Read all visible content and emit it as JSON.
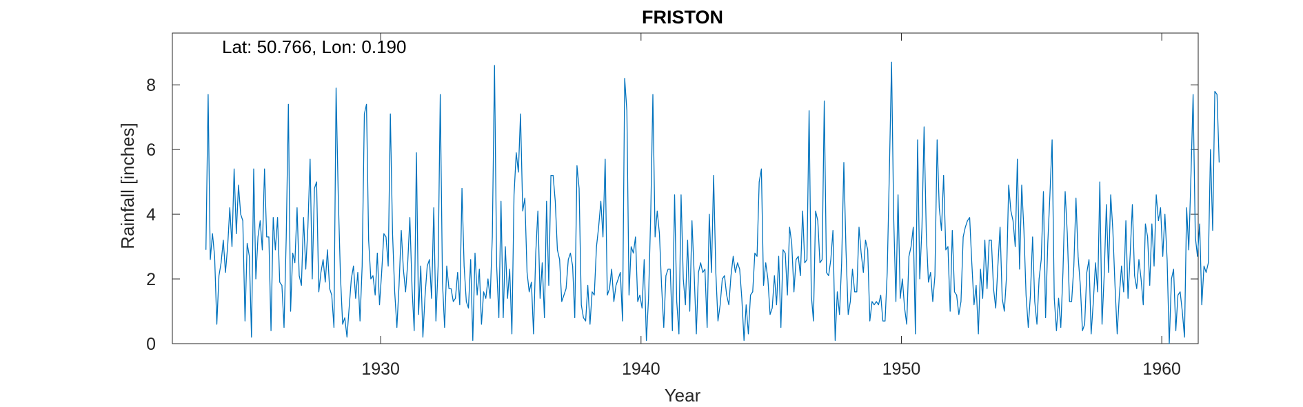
{
  "chart_data": {
    "type": "line",
    "title": "FRISTON",
    "annotation": "Lat: 50.766, Lon: 0.190",
    "xlabel": "Year",
    "ylabel": "Rainfall [inches]",
    "xlim": [
      1922.0,
      1961.4
    ],
    "ylim": [
      0,
      9.6
    ],
    "xticks": [
      1930,
      1940,
      1950,
      1960
    ],
    "yticks": [
      0,
      2,
      4,
      6,
      8
    ],
    "grid": false,
    "series_color": "#0072BD",
    "series": [
      {
        "x_start": 1923.29,
        "x_step": 0.08333,
        "values": [
          2.9,
          7.7,
          2.6,
          3.4,
          2.7,
          0.6,
          2.1,
          2.5,
          3.2,
          2.2,
          3.0,
          4.2,
          3.0,
          5.4,
          3.4,
          4.9,
          4.0,
          3.8,
          0.7,
          3.1,
          2.7,
          0.2,
          5.4,
          2.0,
          3.3,
          3.8,
          2.9,
          5.4,
          3.3,
          3.3,
          0.4,
          3.9,
          2.9,
          3.9,
          1.9,
          1.8,
          0.5,
          3.3,
          7.4,
          1.0,
          2.8,
          2.5,
          4.2,
          2.1,
          1.8,
          3.9,
          2.3,
          3.6,
          5.7,
          2.0,
          4.8,
          5.0,
          1.6,
          2.2,
          2.6,
          1.9,
          2.9,
          1.7,
          1.5,
          0.5,
          7.9,
          4.5,
          2.1,
          0.6,
          0.8,
          0.2,
          1.1,
          2.0,
          2.4,
          1.4,
          2.2,
          0.7,
          2.4,
          7.1,
          7.4,
          3.2,
          2.0,
          2.1,
          1.5,
          2.8,
          1.2,
          2.2,
          3.4,
          3.3,
          2.4,
          7.1,
          3.4,
          1.6,
          0.5,
          1.8,
          3.5,
          2.3,
          1.6,
          2.5,
          3.9,
          1.7,
          0.4,
          5.9,
          0.9,
          2.4,
          0.2,
          1.5,
          2.4,
          2.6,
          1.4,
          4.2,
          0.7,
          2.4,
          7.7,
          1.9,
          0.5,
          2.4,
          1.7,
          1.7,
          1.3,
          1.4,
          2.2,
          1.2,
          4.8,
          2.4,
          1.3,
          1.1,
          2.6,
          0.1,
          2.8,
          1.5,
          2.3,
          0.6,
          1.6,
          1.4,
          2.0,
          1.4,
          3.3,
          8.6,
          2.4,
          0.8,
          4.4,
          0.8,
          3.0,
          1.4,
          2.3,
          0.3,
          4.6,
          5.9,
          5.3,
          7.1,
          4.1,
          4.5,
          2.2,
          1.6,
          1.9,
          0.3,
          2.8,
          4.1,
          1.4,
          2.5,
          0.8,
          4.4,
          1.8,
          5.2,
          5.2,
          4.4,
          2.9,
          2.6,
          1.3,
          1.5,
          1.7,
          2.6,
          2.8,
          2.4,
          0.8,
          5.5,
          4.8,
          1.2,
          0.8,
          0.7,
          1.8,
          0.6,
          1.6,
          1.5,
          3.0,
          3.6,
          4.4,
          3.3,
          5.7,
          1.5,
          1.7,
          2.3,
          1.3,
          1.8,
          2.0,
          2.2,
          0.7,
          8.2,
          7.2,
          1.5,
          3.0,
          2.8,
          3.3,
          1.3,
          1.5,
          1.1,
          2.6,
          0.1,
          1.4,
          4.0,
          7.7,
          3.3,
          4.1,
          3.4,
          1.8,
          0.5,
          2.1,
          2.3,
          2.3,
          0.4,
          4.6,
          1.3,
          0.3,
          4.6,
          2.0,
          1.2,
          3.2,
          1.0,
          3.8,
          2.2,
          0.3,
          2.2,
          2.5,
          2.2,
          2.3,
          0.5,
          4.0,
          2.2,
          5.2,
          2.2,
          0.7,
          1.2,
          2.0,
          2.1,
          1.5,
          1.2,
          2.1,
          2.7,
          2.2,
          2.5,
          2.3,
          1.4,
          0.1,
          1.2,
          0.3,
          1.5,
          1.6,
          2.8,
          2.7,
          5.0,
          5.4,
          1.8,
          2.5,
          2.0,
          0.9,
          1.1,
          2.1,
          1.2,
          2.7,
          0.5,
          2.9,
          2.8,
          1.5,
          3.6,
          3.1,
          1.6,
          2.6,
          2.7,
          2.1,
          4.1,
          2.5,
          2.6,
          7.2,
          1.5,
          0.7,
          4.1,
          3.8,
          2.5,
          2.6,
          7.5,
          2.2,
          2.1,
          2.6,
          3.5,
          0.1,
          1.6,
          0.9,
          2.5,
          5.6,
          2.9,
          0.9,
          1.3,
          2.3,
          1.6,
          1.6,
          3.6,
          2.8,
          2.2,
          3.2,
          2.9,
          0.7,
          1.3,
          1.2,
          1.3,
          1.2,
          1.5,
          0.7,
          0.7,
          2.2,
          5.3,
          8.7,
          3.9,
          1.3,
          4.6,
          1.4,
          2.0,
          1.1,
          0.6,
          2.7,
          3.0,
          3.6,
          0.3,
          6.3,
          2.0,
          3.6,
          6.7,
          3.4,
          1.9,
          2.2,
          1.3,
          2.1,
          6.3,
          4.2,
          3.5,
          5.2,
          2.9,
          3.0,
          1.0,
          3.5,
          1.6,
          1.5,
          0.9,
          1.3,
          3.3,
          3.6,
          3.8,
          3.9,
          2.5,
          1.2,
          1.8,
          0.3,
          2.3,
          1.4,
          3.2,
          1.7,
          3.2,
          3.2,
          1.7,
          1.1,
          2.4,
          3.6,
          1.4,
          1.0,
          2.1,
          4.9,
          4.1,
          3.8,
          3.0,
          5.7,
          2.3,
          4.9,
          3.5,
          1.5,
          0.5,
          1.5,
          3.3,
          1.3,
          0.6,
          2.0,
          2.6,
          4.7,
          0.8,
          3.1,
          4.6,
          6.3,
          1.4,
          0.4,
          1.4,
          0.5,
          2.2,
          4.7,
          3.4,
          1.3,
          1.3,
          2.4,
          4.5,
          2.7,
          1.8,
          0.4,
          0.6,
          2.2,
          2.6,
          0.3,
          1.3,
          2.5,
          1.6,
          5.0,
          0.6,
          2.1,
          4.3,
          2.2,
          4.6,
          3.5,
          1.8,
          0.3,
          1.5,
          2.4,
          1.6,
          3.8,
          1.4,
          2.8,
          4.3,
          2.1,
          1.7,
          2.6,
          2.0,
          1.2,
          3.7,
          3.3,
          1.8,
          3.7,
          2.4,
          4.6,
          3.8,
          4.2,
          2.7,
          4.0,
          2.6,
          0.0,
          2.0,
          2.3,
          0.4,
          1.5,
          1.6,
          1.0,
          0.2,
          4.2,
          2.9,
          5.2,
          7.7,
          3.3,
          2.7,
          3.7,
          1.2,
          2.4,
          2.2,
          2.5,
          6.0,
          3.5,
          7.8,
          7.7,
          5.6
        ]
      }
    ]
  }
}
